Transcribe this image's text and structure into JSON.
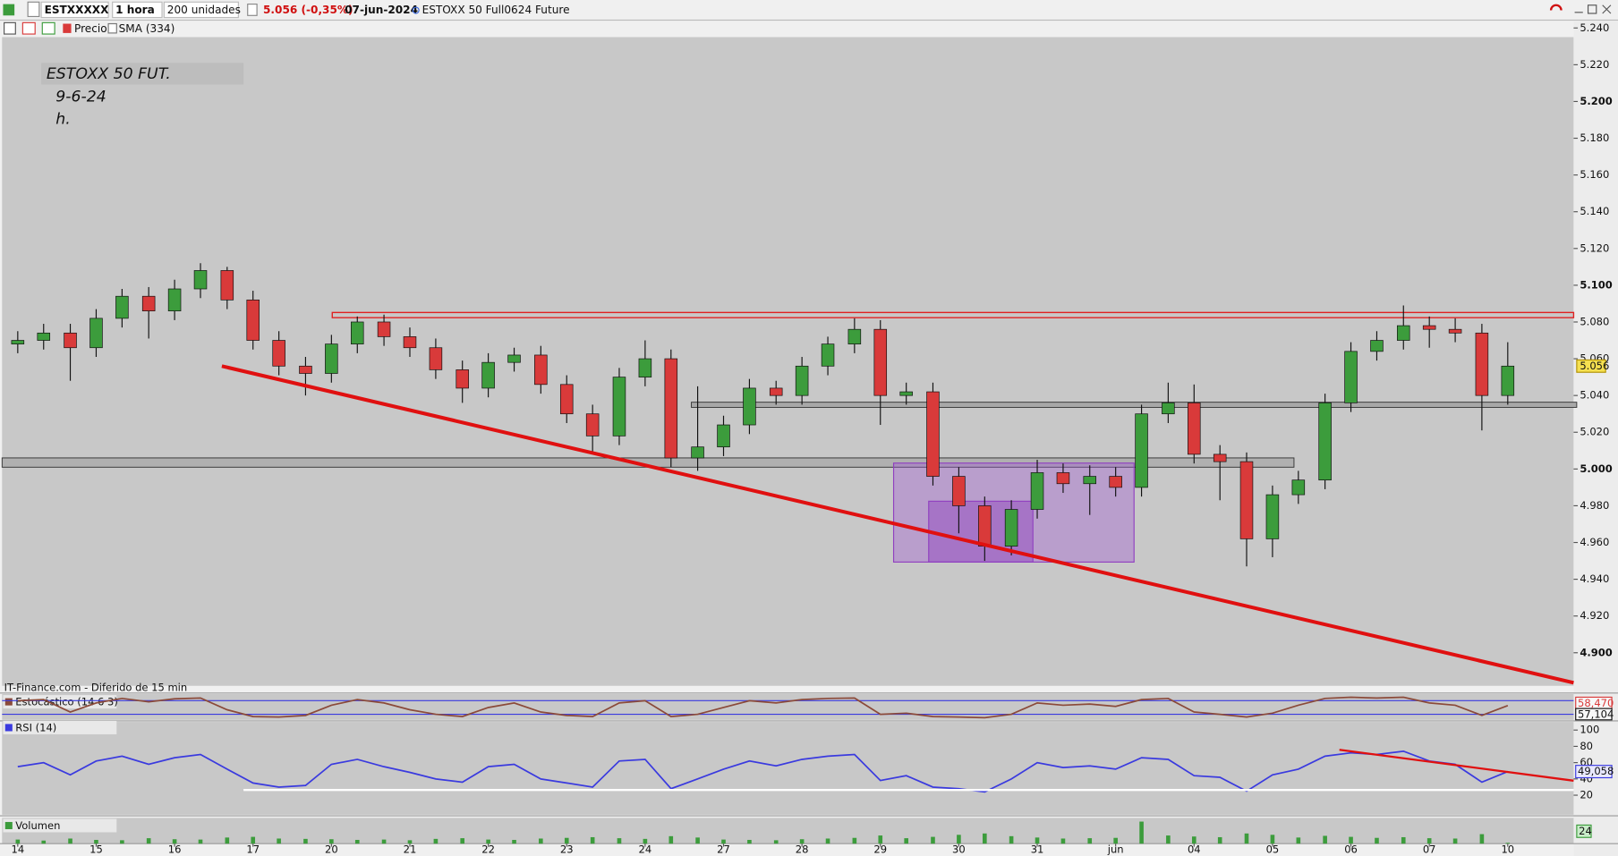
{
  "toolbar": {
    "symbol": "ESTXXXXX",
    "interval": "1 hora",
    "units": "200 unidades",
    "change": "5.056 (-0,35%)",
    "date": "07-jun-2024",
    "instrument": "ESTOXX 50 Full0624 Future",
    "legend": [
      "Precio",
      "SMA (334)"
    ]
  },
  "chart_data": [
    {
      "type": "candlestick",
      "annotations": [
        "ESTOXX 50 FUT.",
        "9-6-24",
        "h."
      ],
      "source": "IT-Finance.com - Diferido de 15 min",
      "up_color": "#3c9c3c",
      "down_color": "#d93a3a",
      "x": [
        0,
        0.33,
        0.67,
        1,
        1.33,
        1.67,
        2,
        2.33,
        2.67,
        3,
        3.33,
        3.67,
        4,
        4.33,
        4.67,
        5,
        5.33,
        5.67,
        6,
        6.33,
        6.67,
        7,
        7.33,
        7.67,
        8,
        8.33,
        8.67,
        9,
        9.33,
        9.67,
        10,
        10.33,
        10.67,
        11,
        11.33,
        11.67,
        12,
        12.33,
        12.67,
        13,
        13.33,
        13.67,
        14,
        14.33,
        14.67,
        15,
        15.33,
        15.67,
        16,
        16.33,
        16.67,
        17,
        17.33,
        17.67,
        18,
        18.33,
        18.67,
        19
      ],
      "open": [
        5.068,
        5.07,
        5.074,
        5.066,
        5.082,
        5.094,
        5.086,
        5.098,
        5.108,
        5.092,
        5.07,
        5.056,
        5.052,
        5.068,
        5.08,
        5.072,
        5.066,
        5.054,
        5.044,
        5.058,
        5.062,
        5.046,
        5.03,
        5.018,
        5.05,
        5.06,
        5.006,
        5.012,
        5.024,
        5.044,
        5.04,
        5.056,
        5.068,
        5.076,
        5.04,
        5.042,
        4.996,
        4.98,
        4.958,
        4.978,
        4.998,
        4.992,
        4.996,
        4.99,
        5.03,
        5.036,
        5.008,
        5.004,
        4.962,
        4.986,
        4.994,
        5.036,
        5.064,
        5.07,
        5.078,
        5.076,
        5.074,
        5.04
      ],
      "high": [
        5.075,
        5.079,
        5.079,
        5.087,
        5.098,
        5.099,
        5.103,
        5.112,
        5.11,
        5.097,
        5.075,
        5.061,
        5.073,
        5.083,
        5.084,
        5.077,
        5.071,
        5.059,
        5.063,
        5.066,
        5.067,
        5.051,
        5.035,
        5.055,
        5.07,
        5.065,
        5.045,
        5.029,
        5.049,
        5.048,
        5.061,
        5.072,
        5.082,
        5.081,
        5.047,
        5.047,
        5.001,
        4.985,
        4.983,
        5.005,
        5.003,
        5.002,
        5.001,
        5.035,
        5.047,
        5.046,
        5.013,
        5.009,
        4.991,
        4.999,
        5.041,
        5.069,
        5.075,
        5.089,
        5.083,
        5.082,
        5.079,
        5.069
      ],
      "low": [
        5.063,
        5.065,
        5.048,
        5.061,
        5.077,
        5.071,
        5.081,
        5.093,
        5.087,
        5.065,
        5.051,
        5.04,
        5.047,
        5.063,
        5.067,
        5.061,
        5.049,
        5.036,
        5.039,
        5.053,
        5.041,
        5.025,
        5.009,
        5.013,
        5.045,
        5.001,
        4.999,
        5.007,
        5.019,
        5.035,
        5.035,
        5.051,
        5.063,
        5.024,
        5.035,
        4.991,
        4.965,
        4.95,
        4.953,
        4.973,
        4.987,
        4.975,
        4.985,
        4.985,
        5.025,
        5.003,
        4.983,
        4.947,
        4.952,
        4.981,
        4.989,
        5.031,
        5.059,
        5.065,
        5.066,
        5.069,
        5.021,
        5.035
      ],
      "close": [
        5.07,
        5.074,
        5.066,
        5.082,
        5.094,
        5.086,
        5.098,
        5.108,
        5.092,
        5.07,
        5.056,
        5.052,
        5.068,
        5.08,
        5.072,
        5.066,
        5.054,
        5.044,
        5.058,
        5.062,
        5.046,
        5.03,
        5.018,
        5.05,
        5.06,
        5.006,
        5.012,
        5.024,
        5.044,
        5.04,
        5.056,
        5.068,
        5.076,
        5.04,
        5.042,
        4.996,
        4.98,
        4.958,
        4.978,
        4.998,
        4.992,
        4.996,
        4.99,
        5.03,
        5.036,
        5.008,
        5.004,
        4.962,
        4.986,
        4.994,
        5.036,
        5.064,
        5.07,
        5.078,
        5.076,
        5.074,
        5.04,
        5.056
      ],
      "current": {
        "value": 5.056,
        "label": "5.056"
      },
      "xlim": [
        -0.2,
        19.84
      ],
      "ylim": [
        4.882,
        5.244
      ],
      "yticks": [
        {
          "value": 5.24,
          "label": "5.240"
        },
        {
          "value": 5.22,
          "label": "5.220"
        },
        {
          "value": 5.2,
          "label": "5.200"
        },
        {
          "value": 5.18,
          "label": "5.180"
        },
        {
          "value": 5.16,
          "label": "5.160"
        },
        {
          "value": 5.14,
          "label": "5.140"
        },
        {
          "value": 5.12,
          "label": "5.120"
        },
        {
          "value": 5.1,
          "label": "5.100"
        },
        {
          "value": 5.08,
          "label": "5.080"
        },
        {
          "value": 5.06,
          "label": "5.060"
        },
        {
          "value": 5.04,
          "label": "5.040"
        },
        {
          "value": 5.02,
          "label": "5.020"
        },
        {
          "value": 5.0,
          "label": "5.000"
        },
        {
          "value": 4.98,
          "label": "4.980"
        },
        {
          "value": 4.96,
          "label": "4.960"
        },
        {
          "value": 4.94,
          "label": "4.940"
        },
        {
          "value": 4.92,
          "label": "4.920"
        },
        {
          "value": 4.9,
          "label": "4.900"
        }
      ]
    },
    {
      "type": "line",
      "title": "Estocástico (14 6 3)",
      "color": "#8b4a3a",
      "level_color": "#3a3adf",
      "x": [
        0,
        0.33,
        0.67,
        1,
        1.33,
        1.67,
        2,
        2.33,
        2.67,
        3,
        3.33,
        3.67,
        4,
        4.33,
        4.67,
        5,
        5.33,
        5.67,
        6,
        6.33,
        6.67,
        7,
        7.33,
        7.67,
        8,
        8.33,
        8.67,
        9,
        9.33,
        9.67,
        10,
        10.33,
        10.67,
        11,
        11.33,
        11.67,
        12,
        12.33,
        12.67,
        13,
        13.33,
        13.67,
        14,
        14.33,
        14.67,
        15,
        15.33,
        15.67,
        16,
        16.33,
        16.67,
        17,
        17.33,
        17.67,
        18,
        18.33,
        18.67,
        19
      ],
      "values": [
        80,
        85,
        30,
        70,
        90,
        75,
        88,
        92,
        40,
        10,
        8,
        15,
        60,
        85,
        70,
        40,
        20,
        10,
        50,
        70,
        30,
        15,
        10,
        70,
        80,
        10,
        20,
        50,
        80,
        70,
        85,
        90,
        92,
        20,
        25,
        10,
        8,
        5,
        20,
        70,
        60,
        65,
        55,
        85,
        90,
        30,
        20,
        8,
        25,
        60,
        90,
        95,
        92,
        95,
        70,
        60,
        15,
        58.47
      ],
      "levels": [
        20,
        80
      ],
      "current": [
        {
          "value": 58.47,
          "label": "58,470",
          "color": "#d93a3a"
        },
        {
          "value": 57.104,
          "label": "57,104",
          "color": "#111111"
        }
      ],
      "xlim": [
        -0.2,
        19.84
      ],
      "ylim": [
        0,
        100
      ]
    },
    {
      "type": "line",
      "title": "RSI (14)",
      "color": "#3a3adf",
      "x": [
        0,
        0.33,
        0.67,
        1,
        1.33,
        1.67,
        2,
        2.33,
        2.67,
        3,
        3.33,
        3.67,
        4,
        4.33,
        4.67,
        5,
        5.33,
        5.67,
        6,
        6.33,
        6.67,
        7,
        7.33,
        7.67,
        8,
        8.33,
        8.67,
        9,
        9.33,
        9.67,
        10,
        10.33,
        10.67,
        11,
        11.33,
        11.67,
        12,
        12.33,
        12.67,
        13,
        13.33,
        13.67,
        14,
        14.33,
        14.67,
        15,
        15.33,
        15.67,
        16,
        16.33,
        16.67,
        17,
        17.33,
        17.67,
        18,
        18.33,
        18.67,
        19
      ],
      "values": [
        55,
        60,
        45,
        62,
        68,
        58,
        66,
        70,
        52,
        35,
        30,
        32,
        58,
        64,
        55,
        48,
        40,
        36,
        55,
        58,
        40,
        35,
        30,
        62,
        64,
        28,
        40,
        52,
        62,
        56,
        64,
        68,
        70,
        38,
        44,
        30,
        28,
        24,
        40,
        60,
        54,
        56,
        52,
        66,
        64,
        44,
        42,
        25,
        45,
        52,
        68,
        72,
        70,
        74,
        62,
        58,
        36,
        49.058
      ],
      "current": {
        "value": 49.058,
        "label": "49,058"
      },
      "xlim": [
        -0.2,
        19.84
      ],
      "ylim": [
        -4,
        110
      ],
      "yticks": [
        20,
        40,
        60,
        80,
        100
      ]
    },
    {
      "type": "bar",
      "title": "Volumen",
      "color": "#3c9c3c",
      "x": [
        0,
        0.33,
        0.67,
        1,
        1.33,
        1.67,
        2,
        2.33,
        2.67,
        3,
        3.33,
        3.67,
        4,
        4.33,
        4.67,
        5,
        5.33,
        5.67,
        6,
        6.33,
        6.67,
        7,
        7.33,
        7.67,
        8,
        8.33,
        8.67,
        9,
        9.33,
        9.67,
        10,
        10.33,
        10.67,
        11,
        11.33,
        11.67,
        12,
        12.33,
        12.67,
        13,
        13.33,
        13.67,
        14,
        14.33,
        14.67,
        15,
        15.33,
        15.67,
        16,
        16.33,
        16.67,
        17,
        17.33,
        17.67,
        18,
        18.33,
        18.67,
        19
      ],
      "values": [
        120,
        90,
        150,
        110,
        100,
        160,
        130,
        120,
        180,
        200,
        150,
        140,
        130,
        110,
        120,
        100,
        140,
        160,
        120,
        110,
        150,
        170,
        190,
        160,
        140,
        220,
        180,
        120,
        110,
        100,
        130,
        150,
        170,
        240,
        160,
        200,
        260,
        300,
        220,
        180,
        150,
        160,
        170,
        650,
        240,
        210,
        190,
        300,
        260,
        180,
        230,
        200,
        170,
        190,
        160,
        150,
        280,
        24
      ],
      "current": 24,
      "xlim": [
        -0.2,
        19.84
      ],
      "ylim": [
        0,
        700
      ],
      "xticks": [
        {
          "value": 0,
          "label": "14"
        },
        {
          "value": 1,
          "label": "15"
        },
        {
          "value": 2,
          "label": "16"
        },
        {
          "value": 3,
          "label": "17"
        },
        {
          "value": 4,
          "label": "20"
        },
        {
          "value": 5,
          "label": "21"
        },
        {
          "value": 6,
          "label": "22"
        },
        {
          "value": 7,
          "label": "23"
        },
        {
          "value": 8,
          "label": "24"
        },
        {
          "value": 9,
          "label": "27"
        },
        {
          "value": 10,
          "label": "28"
        },
        {
          "value": 11,
          "label": "29"
        },
        {
          "value": 12,
          "label": "30"
        },
        {
          "value": 13,
          "label": "31"
        },
        {
          "value": 14,
          "label": "jun"
        },
        {
          "value": 15,
          "label": "04"
        },
        {
          "value": 16,
          "label": "05"
        },
        {
          "value": 17,
          "label": "06"
        },
        {
          "value": 18,
          "label": "07"
        },
        {
          "value": 19,
          "label": "10"
        }
      ]
    }
  ]
}
